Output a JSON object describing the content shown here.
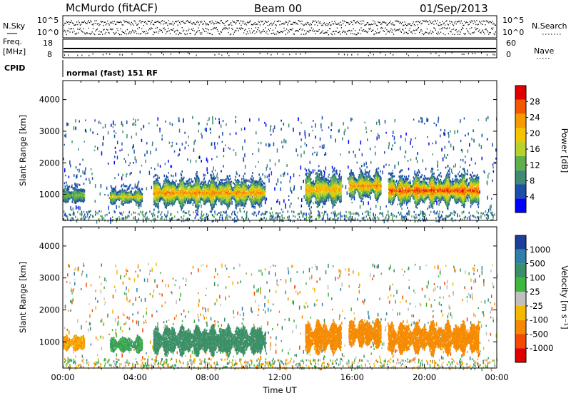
{
  "header": {
    "station": "McMurdo (fitACF)",
    "beam": "Beam 00",
    "date": "01/Sep/2013"
  },
  "noise_panel": {
    "left_label": "N.Sky",
    "right_label": "N.Search",
    "left_ticks": [
      "10^5",
      "10^0"
    ],
    "right_ticks": [
      "10^5",
      "10^0"
    ]
  },
  "freq_panel": {
    "left_label_1": "Freq.",
    "left_label_2": "[MHz]",
    "right_label": "Nave",
    "left_ticks": [
      "18",
      "8"
    ],
    "right_ticks": [
      "60",
      "0"
    ]
  },
  "cpid": {
    "label": "CPID",
    "value": "normal (fast) 151 RF"
  },
  "colors": {
    "power_scale": [
      "#0000ff",
      "#1b4fa8",
      "#3f8a73",
      "#5fb04a",
      "#b8d22a",
      "#f5c400",
      "#f59a00",
      "#f25800",
      "#e00000"
    ],
    "velocity_scale": [
      "#1c3f99",
      "#2f7fa8",
      "#3b8f66",
      "#3cb83c",
      "#bfbfbf",
      "#f5b800",
      "#f58a00",
      "#f24a00",
      "#e00000"
    ]
  },
  "chart_data": [
    {
      "type": "heatmap",
      "name": "power",
      "ylabel": "Slant Range [km]",
      "xlabel": "",
      "x_ticks": [
        "00:00",
        "04:00",
        "08:00",
        "12:00",
        "16:00",
        "20:00",
        "00:00"
      ],
      "xlim_hours": [
        0,
        24
      ],
      "ylim": [
        180,
        4600
      ],
      "y_ticks": [
        1000,
        2000,
        3000,
        4000
      ],
      "colorbar": {
        "label": "Power [dB]",
        "ticks": [
          "4",
          "8",
          "12",
          "16",
          "20",
          "24",
          "28"
        ],
        "range": [
          0,
          32
        ]
      },
      "echo_regions": [
        {
          "t0": 0.0,
          "t1": 1.2,
          "r0": 700,
          "r1": 1200,
          "value": 14
        },
        {
          "t0": 2.6,
          "t1": 4.4,
          "r0": 650,
          "r1": 1150,
          "value": 18
        },
        {
          "t0": 5.0,
          "t1": 11.2,
          "r0": 550,
          "r1": 1500,
          "value": 24
        },
        {
          "t0": 13.4,
          "t1": 15.4,
          "r0": 600,
          "r1": 1650,
          "value": 22
        },
        {
          "t0": 15.8,
          "t1": 17.6,
          "r0": 800,
          "r1": 1700,
          "value": 24
        },
        {
          "t0": 18.0,
          "t1": 23.0,
          "r0": 600,
          "r1": 1600,
          "value": 28
        }
      ]
    },
    {
      "type": "heatmap",
      "name": "velocity",
      "ylabel": "Slant Range [km]",
      "xlabel": "Time UT",
      "x_ticks": [
        "00:00",
        "04:00",
        "08:00",
        "12:00",
        "16:00",
        "20:00",
        "00:00"
      ],
      "xlim_hours": [
        0,
        24
      ],
      "ylim": [
        180,
        4600
      ],
      "y_ticks": [
        1000,
        2000,
        3000,
        4000
      ],
      "colorbar": {
        "label": "Velocity [m s⁻¹]",
        "ticks": [
          "1000",
          "500",
          "100",
          "25",
          "-25",
          "-100",
          "-500",
          "-1000"
        ]
      },
      "echo_regions": [
        {
          "t0": 0.0,
          "t1": 1.2,
          "r0": 700,
          "r1": 1200,
          "value": -100
        },
        {
          "t0": 2.6,
          "t1": 4.4,
          "r0": 650,
          "r1": 1150,
          "value": 100
        },
        {
          "t0": 5.0,
          "t1": 11.2,
          "r0": 550,
          "r1": 1500,
          "value": 300
        },
        {
          "t0": 13.4,
          "t1": 15.4,
          "r0": 600,
          "r1": 1650,
          "value": -250
        },
        {
          "t0": 15.8,
          "t1": 17.6,
          "r0": 800,
          "r1": 1700,
          "value": -300
        },
        {
          "t0": 18.0,
          "t1": 23.0,
          "r0": 600,
          "r1": 1600,
          "value": -300
        }
      ]
    }
  ]
}
